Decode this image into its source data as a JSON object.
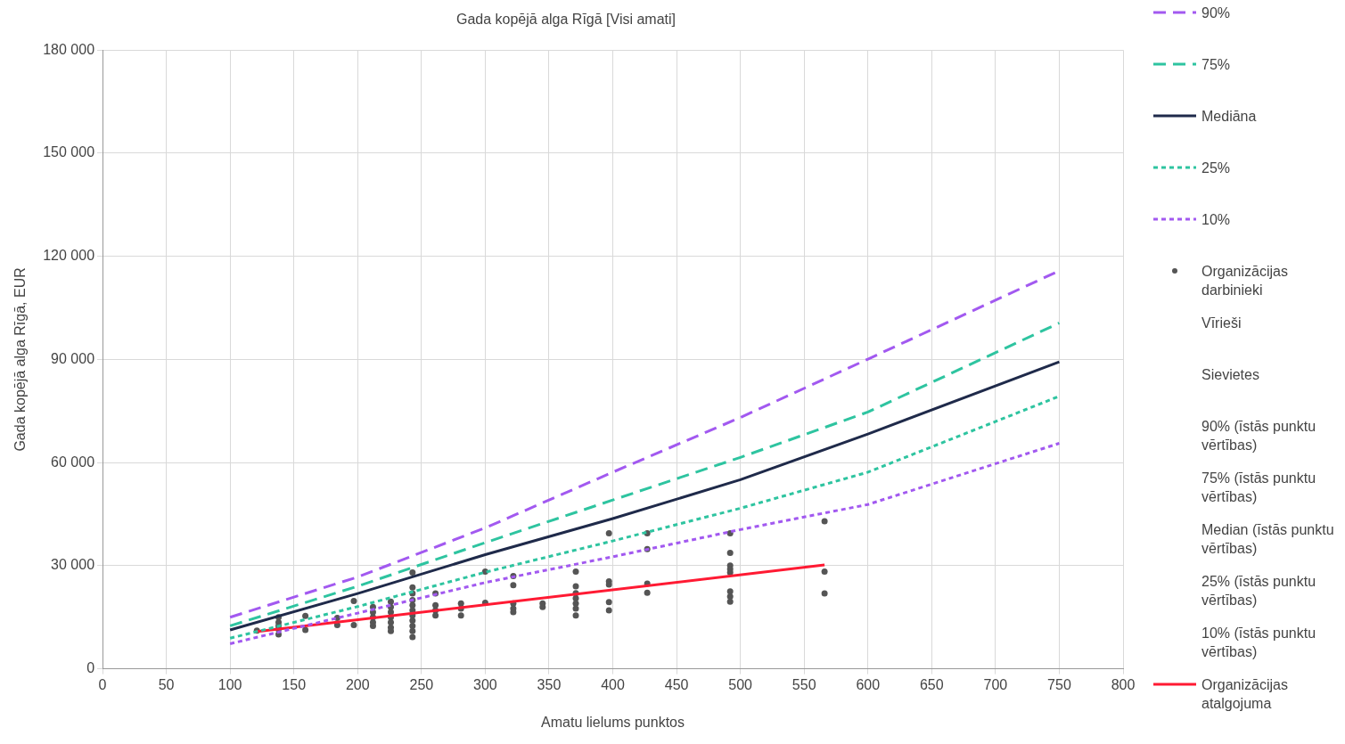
{
  "chart_data": {
    "type": "line",
    "title": "Gada kopējā alga Rīgā [Visi amati]",
    "xlabel": "Amatu lielums punktos",
    "ylabel": "Gada kopējā alga Rīgā, EUR",
    "xlim": [
      0,
      800
    ],
    "xticks": [
      0,
      50,
      100,
      150,
      200,
      250,
      300,
      350,
      400,
      450,
      500,
      550,
      600,
      650,
      700,
      750,
      800
    ],
    "ylim": [
      0,
      180000
    ],
    "yticks": [
      {
        "value": 0,
        "label": "0"
      },
      {
        "value": 30000,
        "label": "30 000"
      },
      {
        "value": 60000,
        "label": "60 000"
      },
      {
        "value": 90000,
        "label": "90 000"
      },
      {
        "value": 120000,
        "label": "120 000"
      },
      {
        "value": 150000,
        "label": "150 000"
      },
      {
        "value": 180000,
        "label": "180 000"
      }
    ],
    "grid": true,
    "legend": "right",
    "marker": "none",
    "series": [
      {
        "name": "90%",
        "type": "line",
        "line_style": "dashed",
        "color": "#a259f0",
        "x": [
          100,
          200,
          300,
          400,
          500,
          600,
          750
        ],
        "values": [
          15000,
          26700,
          41000,
          57200,
          73100,
          90100,
          115800
        ]
      },
      {
        "name": "75%",
        "type": "line",
        "line_style": "dashed",
        "color": "#2ec4a0",
        "x": [
          100,
          200,
          300,
          400,
          500,
          600,
          750
        ],
        "values": [
          12500,
          24000,
          36700,
          49100,
          61500,
          74700,
          100600
        ]
      },
      {
        "name": "Mediāna",
        "type": "line",
        "line_style": "solid",
        "color": "#1f2a4a",
        "x": [
          100,
          200,
          300,
          400,
          500,
          600,
          750
        ],
        "values": [
          11300,
          21900,
          33200,
          43700,
          55000,
          68300,
          89300
        ]
      },
      {
        "name": "25%",
        "type": "line",
        "line_style": "dotted",
        "color": "#2ec4a0",
        "x": [
          100,
          200,
          300,
          400,
          500,
          600,
          750
        ],
        "values": [
          8900,
          18100,
          28100,
          37200,
          46700,
          57200,
          79300
        ]
      },
      {
        "name": "10%",
        "type": "line",
        "line_style": "dotted",
        "color": "#a259f0",
        "x": [
          100,
          200,
          300,
          400,
          500,
          600,
          750
        ],
        "values": [
          7300,
          16200,
          25100,
          32600,
          40500,
          47800,
          65600
        ]
      },
      {
        "name": "Organizācijas darbinieki",
        "type": "scatter",
        "marker": "circle",
        "color": "#555555",
        "x": [
          121,
          138,
          138,
          138,
          138,
          138,
          159,
          159,
          184,
          184,
          197,
          197,
          212,
          212,
          212,
          212,
          212,
          226,
          226,
          226,
          226,
          226,
          226,
          226,
          243,
          243,
          243,
          243,
          243,
          243,
          243,
          243,
          243,
          243,
          243,
          261,
          261,
          261,
          261,
          281,
          281,
          281,
          300,
          300,
          322,
          322,
          322,
          322,
          322,
          345,
          345,
          371,
          371,
          371,
          371,
          371,
          371,
          371,
          397,
          397,
          397,
          397,
          397,
          427,
          427,
          427,
          427,
          492,
          492,
          492,
          492,
          492,
          492,
          492,
          492,
          566,
          566,
          566
        ],
        "values": [
          11100,
          15000,
          13500,
          12500,
          11500,
          10000,
          15400,
          11300,
          14800,
          12700,
          19700,
          12700,
          18000,
          16500,
          15000,
          13500,
          12500,
          19500,
          18000,
          16500,
          15000,
          13500,
          12000,
          11000,
          28000,
          23700,
          21900,
          20000,
          18500,
          17000,
          15500,
          14000,
          12500,
          11000,
          9200,
          21900,
          18500,
          17000,
          15500,
          19000,
          17500,
          15500,
          28300,
          19200,
          27000,
          24300,
          19000,
          17500,
          16500,
          19000,
          18000,
          28300,
          24000,
          22000,
          20500,
          19000,
          17500,
          15500,
          39400,
          25400,
          24500,
          19400,
          17000,
          39400,
          34800,
          24800,
          22100,
          39400,
          33700,
          30000,
          29000,
          28000,
          22500,
          21000,
          19500,
          42900,
          28300,
          21900
        ]
      },
      {
        "name": "Vīrieši",
        "type": "scatter"
      },
      {
        "name": "Sievietes",
        "type": "scatter"
      },
      {
        "name": "90% (īstās punktu vērtības)",
        "type": "scatter"
      },
      {
        "name": "75% (īstās punktu vērtības)",
        "type": "scatter"
      },
      {
        "name": "Median (īstās punktu vērtības)",
        "type": "scatter"
      },
      {
        "name": "25% (īstās punktu vērtības)",
        "type": "scatter"
      },
      {
        "name": "10% (īstās punktu vērtības)",
        "type": "scatter"
      },
      {
        "name": "Organizācijas atalgojuma",
        "type": "line",
        "line_style": "solid",
        "color": "#ff1a33",
        "x": [
          120,
          566
        ],
        "values": [
          10800,
          30200
        ]
      }
    ]
  }
}
